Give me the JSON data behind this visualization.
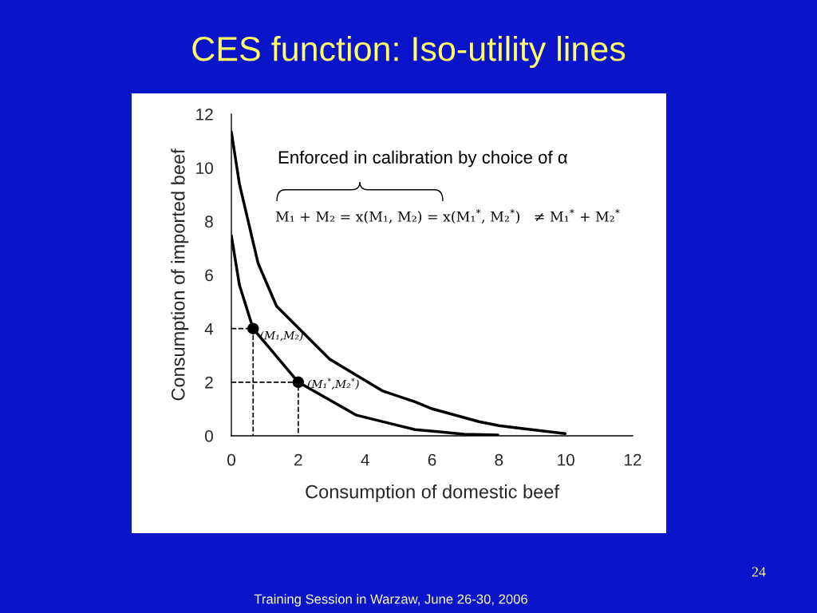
{
  "chart_data": {
    "type": "line",
    "title": "CES function: Iso-utility lines",
    "xlabel": "Consumption of domestic beef",
    "ylabel": "Consumption of imported beef",
    "xlim": [
      0,
      12
    ],
    "ylim": [
      0,
      12
    ],
    "xticks": [
      0,
      2,
      4,
      6,
      8,
      10,
      12
    ],
    "yticks": [
      0,
      2,
      4,
      6,
      8,
      10,
      12
    ],
    "grid": false,
    "legend": false,
    "marker": "none",
    "line_style": "solid",
    "series": [
      {
        "color": "#000000",
        "x": [
          0,
          0.24,
          0.8,
          1.35,
          2.94,
          4.53,
          5.49,
          5.97,
          7.4,
          8.0,
          8.52,
          9.98
        ],
        "values": [
          11.34,
          9.4,
          6.43,
          4.84,
          2.86,
          1.67,
          1.27,
          1.02,
          0.53,
          0.38,
          0.3,
          0.08
        ]
      },
      {
        "color": "#000000",
        "x": [
          0,
          0.24,
          0.65,
          2,
          3.74,
          5.49,
          5.97,
          6.96,
          7.97
        ],
        "values": [
          7.47,
          5.63,
          4,
          2,
          0.77,
          0.23,
          0.18,
          0.06,
          0.03
        ]
      },
      {
        "color": "#000000",
        "line_style": "dashed",
        "x": [
          0,
          0.65,
          0.65
        ],
        "values": [
          4,
          4,
          0
        ]
      },
      {
        "color": "#000000",
        "line_style": "dashed",
        "x": [
          0,
          2,
          2
        ],
        "values": [
          2,
          2,
          0
        ]
      },
      {
        "type": "scatter",
        "color": "#000000",
        "marker": "circle",
        "x": [
          0.65,
          2
        ],
        "values": [
          4,
          2
        ]
      }
    ],
    "annotations": [
      {
        "text": "(M₁,M₂)",
        "x": 0.65,
        "y": 4
      },
      {
        "text": "(M₁$^{*}$,M₂$^{*}$)",
        "x": 2,
        "y": 2
      },
      "Enforced in calibration by choice of α",
      "M₁ + M₂ = x(M₁, M₂) = x(M₁$^{*}$, M₂$^{*}$)   ≠ M₁$^{*}$ + M₂$^{*}$",
      "24",
      "Training Session in Warzaw, June 26-30, 2006"
    ]
  }
}
